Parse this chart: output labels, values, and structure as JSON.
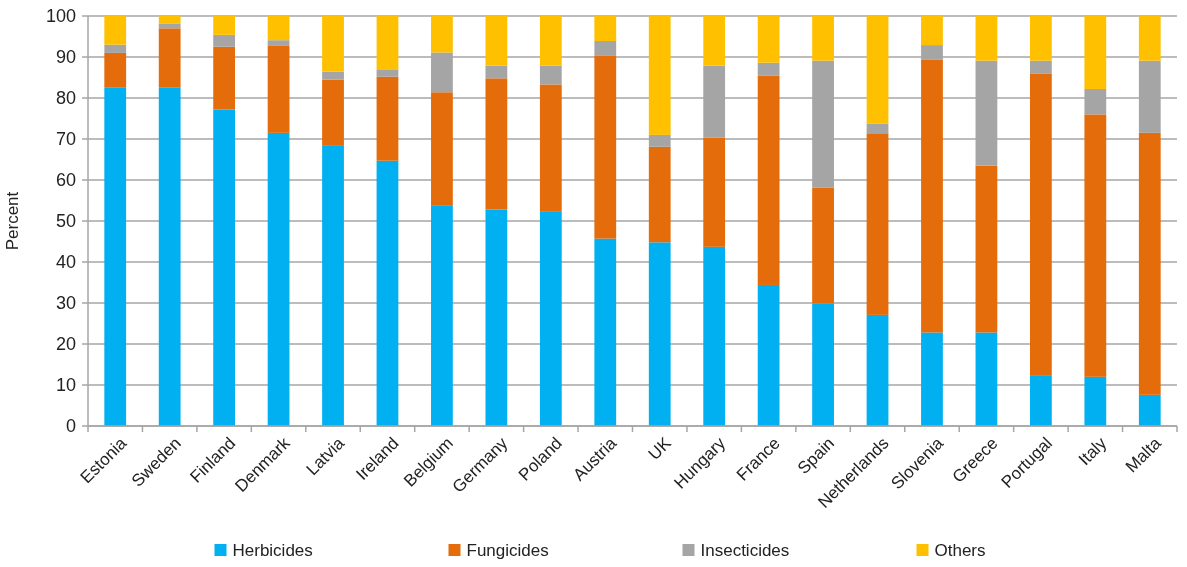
{
  "chart_data": {
    "type": "bar",
    "stacked": true,
    "ylabel": "Percent",
    "categories": [
      "Estonia",
      "Sweden",
      "Finland",
      "Denmark",
      "Latvia",
      "Ireland",
      "Belgium",
      "Germany",
      "Poland",
      "Austria",
      "UK",
      "Hungary",
      "France",
      "Spain",
      "Netherlands",
      "Slovenia",
      "Greece",
      "Portugal",
      "Italy",
      "Malta"
    ],
    "series": [
      {
        "name": "Herbicides",
        "color": "#00b0f0",
        "values": [
          82.5,
          82.5,
          77.2,
          71.5,
          68.5,
          64.7,
          53.7,
          52.8,
          52.4,
          45.7,
          44.8,
          43.7,
          34.4,
          29.9,
          27.1,
          22.8,
          22.8,
          12.4,
          12.0,
          7.6
        ]
      },
      {
        "name": "Fungicides",
        "color": "#e46c0a",
        "values": [
          8.5,
          14.5,
          15.3,
          21.2,
          16.0,
          20.5,
          27.7,
          32.0,
          30.9,
          44.7,
          23.3,
          26.6,
          51.0,
          28.2,
          44.3,
          66.5,
          40.7,
          73.6,
          64.0,
          63.9
        ]
      },
      {
        "name": "Insecticides",
        "color": "#a5a5a5",
        "values": [
          2.0,
          1.2,
          2.9,
          1.4,
          1.9,
          1.8,
          9.7,
          3.1,
          4.6,
          3.5,
          2.9,
          17.6,
          3.2,
          31.0,
          2.3,
          3.6,
          25.6,
          3.1,
          6.2,
          17.6
        ]
      },
      {
        "name": "Others",
        "color": "#ffc000",
        "values": [
          7.0,
          1.8,
          4.6,
          5.9,
          13.6,
          13.0,
          8.9,
          12.1,
          12.1,
          6.1,
          29.0,
          12.1,
          11.4,
          10.9,
          26.3,
          7.1,
          10.9,
          10.9,
          17.8,
          10.9
        ]
      }
    ],
    "ylim": [
      0,
      100
    ],
    "yticks": [
      0,
      10,
      20,
      30,
      40,
      50,
      60,
      70,
      80,
      90,
      100
    ],
    "grid": "y",
    "legend": "bottom"
  }
}
